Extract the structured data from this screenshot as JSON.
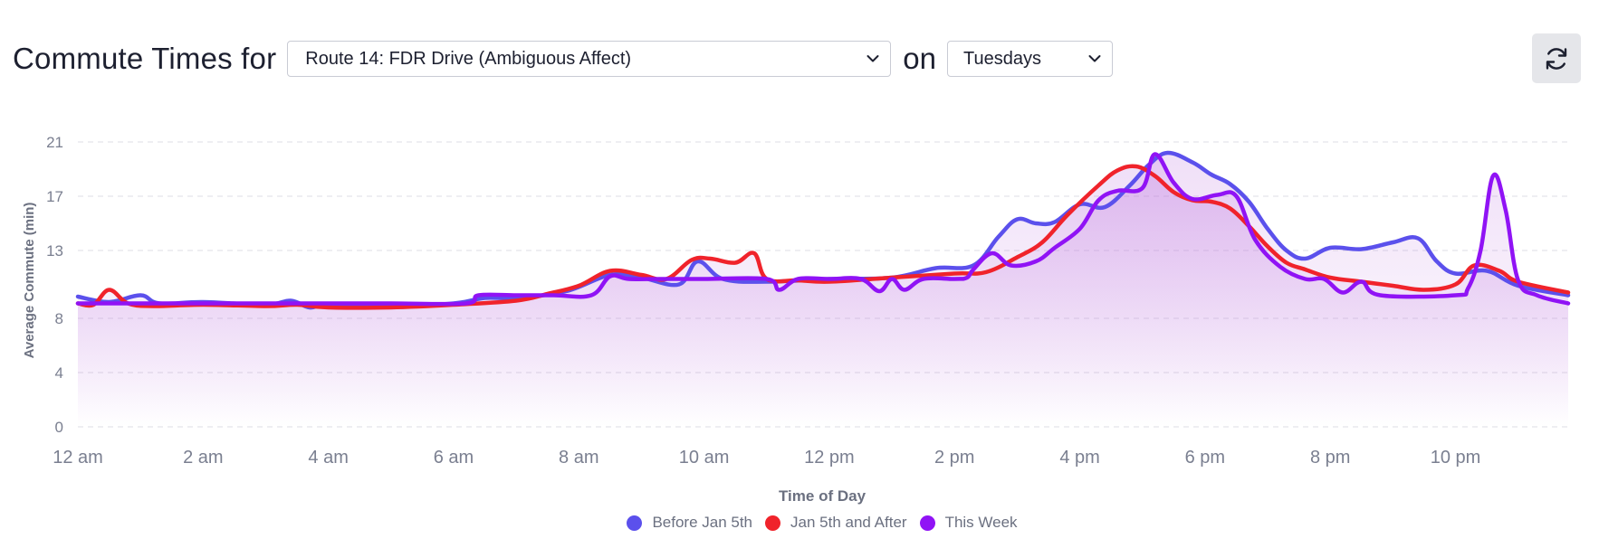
{
  "header": {
    "title_prefix": "Commute Times for",
    "route_select_value": "Route 14: FDR Drive (Ambiguous Affect)",
    "on_label": "on",
    "day_select_value": "Tuesdays",
    "refresh_icon": "refresh-icon"
  },
  "colors": {
    "before": "#5b50ec",
    "after": "#f0232b",
    "week": "#9013f5",
    "fill": "#c07ae0",
    "grid": "#dcdce4",
    "tick": "#7a7f90"
  },
  "chart_data": {
    "type": "line",
    "title": "",
    "xlabel": "Time of Day",
    "ylabel": "Average Commute (min)",
    "ylim": [
      0,
      21
    ],
    "yticks": [
      0,
      4,
      8,
      13,
      17,
      21
    ],
    "xticks": [
      {
        "x": 0,
        "label": "12 am"
      },
      {
        "x": 2,
        "label": "2 am"
      },
      {
        "x": 4,
        "label": "4 am"
      },
      {
        "x": 6,
        "label": "6 am"
      },
      {
        "x": 8,
        "label": "8 am"
      },
      {
        "x": 10,
        "label": "10 am"
      },
      {
        "x": 12,
        "label": "12 pm"
      },
      {
        "x": 14,
        "label": "2 pm"
      },
      {
        "x": 16,
        "label": "4 pm"
      },
      {
        "x": 18,
        "label": "6 pm"
      },
      {
        "x": 20,
        "label": "8 pm"
      },
      {
        "x": 22,
        "label": "10 pm"
      }
    ],
    "xlim": [
      0,
      23.8
    ],
    "grid": true,
    "legend_position": "bottom",
    "series": [
      {
        "name": "Before Jan 5th",
        "color_key": "before",
        "points": [
          [
            0,
            9.6
          ],
          [
            0.5,
            9.2
          ],
          [
            1,
            9.7
          ],
          [
            1.3,
            9.1
          ],
          [
            2,
            9.2
          ],
          [
            3,
            9.0
          ],
          [
            3.4,
            9.3
          ],
          [
            3.7,
            8.8
          ],
          [
            4,
            9.0
          ],
          [
            5,
            8.9
          ],
          [
            6,
            9.1
          ],
          [
            6.5,
            9.5
          ],
          [
            7,
            9.5
          ],
          [
            7.8,
            10.0
          ],
          [
            8.5,
            11.2
          ],
          [
            9,
            11.0
          ],
          [
            9.6,
            10.5
          ],
          [
            9.9,
            12.2
          ],
          [
            10.3,
            10.9
          ],
          [
            11,
            10.7
          ],
          [
            12,
            10.9
          ],
          [
            13,
            11.0
          ],
          [
            13.7,
            11.7
          ],
          [
            14.3,
            11.9
          ],
          [
            14.7,
            14.0
          ],
          [
            15,
            15.3
          ],
          [
            15.3,
            15.0
          ],
          [
            15.6,
            15.1
          ],
          [
            16,
            16.4
          ],
          [
            16.4,
            16.2
          ],
          [
            16.8,
            17.8
          ],
          [
            17.1,
            19.3
          ],
          [
            17.4,
            20.2
          ],
          [
            17.8,
            19.5
          ],
          [
            18.1,
            18.6
          ],
          [
            18.4,
            17.9
          ],
          [
            18.7,
            16.6
          ],
          [
            19,
            14.6
          ],
          [
            19.3,
            13.0
          ],
          [
            19.6,
            12.4
          ],
          [
            20,
            13.2
          ],
          [
            20.5,
            13.1
          ],
          [
            21,
            13.6
          ],
          [
            21.4,
            13.9
          ],
          [
            21.7,
            12.2
          ],
          [
            22,
            11.3
          ],
          [
            22.5,
            11.5
          ],
          [
            23,
            10.4
          ],
          [
            23.8,
            9.7
          ]
        ]
      },
      {
        "name": "Jan 5th and After",
        "color_key": "after",
        "points": [
          [
            0,
            9.1
          ],
          [
            0.25,
            9.0
          ],
          [
            0.5,
            10.1
          ],
          [
            0.8,
            9.1
          ],
          [
            1.2,
            8.9
          ],
          [
            2,
            9.0
          ],
          [
            3,
            8.9
          ],
          [
            3.5,
            9.0
          ],
          [
            4,
            8.8
          ],
          [
            5,
            8.8
          ],
          [
            6,
            9.0
          ],
          [
            7,
            9.3
          ],
          [
            7.5,
            9.8
          ],
          [
            8,
            10.4
          ],
          [
            8.5,
            11.5
          ],
          [
            9,
            11.2
          ],
          [
            9.4,
            10.9
          ],
          [
            9.8,
            12.3
          ],
          [
            10.1,
            12.4
          ],
          [
            10.5,
            12.1
          ],
          [
            10.8,
            12.8
          ],
          [
            11,
            10.9
          ],
          [
            11.5,
            10.8
          ],
          [
            12,
            10.7
          ],
          [
            13,
            11.0
          ],
          [
            14,
            11.3
          ],
          [
            14.5,
            11.4
          ],
          [
            15,
            12.5
          ],
          [
            15.4,
            13.6
          ],
          [
            15.8,
            15.6
          ],
          [
            16.3,
            17.8
          ],
          [
            16.6,
            18.9
          ],
          [
            16.9,
            19.2
          ],
          [
            17.2,
            18.5
          ],
          [
            17.5,
            17.3
          ],
          [
            17.8,
            16.7
          ],
          [
            18.1,
            16.6
          ],
          [
            18.4,
            16.1
          ],
          [
            18.7,
            14.8
          ],
          [
            19,
            13.3
          ],
          [
            19.3,
            12.1
          ],
          [
            19.6,
            11.6
          ],
          [
            20,
            11.0
          ],
          [
            20.5,
            10.7
          ],
          [
            21,
            10.4
          ],
          [
            21.5,
            10.1
          ],
          [
            22,
            10.5
          ],
          [
            22.3,
            11.9
          ],
          [
            22.7,
            11.5
          ],
          [
            23,
            10.7
          ],
          [
            23.8,
            9.9
          ]
        ]
      },
      {
        "name": "This Week",
        "color_key": "week",
        "points": [
          [
            0,
            9.1
          ],
          [
            1,
            9.1
          ],
          [
            2,
            9.1
          ],
          [
            3,
            9.1
          ],
          [
            4,
            9.1
          ],
          [
            5,
            9.1
          ],
          [
            6.2,
            9.1
          ],
          [
            6.4,
            9.7
          ],
          [
            7,
            9.7
          ],
          [
            7.6,
            9.7
          ],
          [
            8.2,
            9.7
          ],
          [
            8.5,
            11.1
          ],
          [
            8.8,
            10.9
          ],
          [
            9.3,
            10.9
          ],
          [
            10,
            10.9
          ],
          [
            11,
            10.9
          ],
          [
            11.2,
            10.1
          ],
          [
            11.5,
            10.9
          ],
          [
            12,
            10.9
          ],
          [
            12.5,
            10.9
          ],
          [
            12.8,
            10.0
          ],
          [
            13,
            10.9
          ],
          [
            13.2,
            10.1
          ],
          [
            13.5,
            10.9
          ],
          [
            14,
            10.9
          ],
          [
            14.2,
            11.0
          ],
          [
            14.3,
            11.6
          ],
          [
            14.6,
            12.8
          ],
          [
            14.9,
            11.9
          ],
          [
            15.3,
            12.2
          ],
          [
            15.6,
            13.2
          ],
          [
            16,
            14.6
          ],
          [
            16.3,
            16.7
          ],
          [
            16.6,
            17.4
          ],
          [
            17,
            17.6
          ],
          [
            17.2,
            20.1
          ],
          [
            17.5,
            18.0
          ],
          [
            17.8,
            16.8
          ],
          [
            18.2,
            17.1
          ],
          [
            18.5,
            17.0
          ],
          [
            18.8,
            13.8
          ],
          [
            19.2,
            11.8
          ],
          [
            19.6,
            10.9
          ],
          [
            19.9,
            10.9
          ],
          [
            20.2,
            9.9
          ],
          [
            20.5,
            10.7
          ],
          [
            20.8,
            9.7
          ],
          [
            22,
            9.7
          ],
          [
            22.2,
            10.2
          ],
          [
            22.4,
            13.0
          ],
          [
            22.6,
            18.5
          ],
          [
            22.8,
            16.0
          ],
          [
            23,
            10.8
          ],
          [
            23.3,
            9.7
          ],
          [
            23.8,
            9.1
          ]
        ]
      }
    ]
  }
}
